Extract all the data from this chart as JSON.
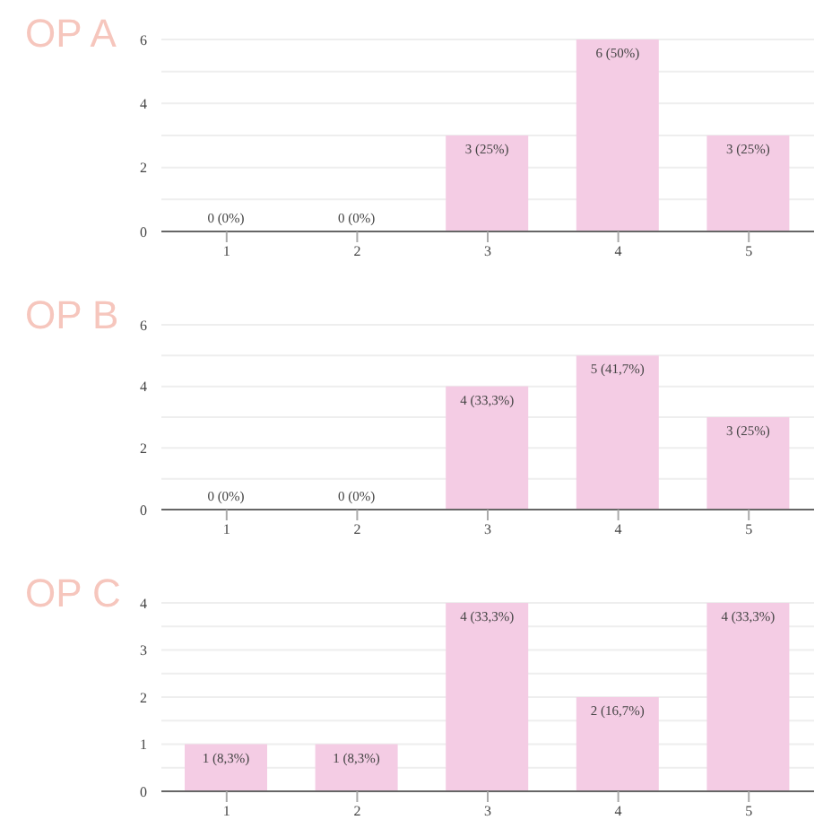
{
  "chart_data": [
    {
      "type": "bar",
      "title": "OP A",
      "categories": [
        "1",
        "2",
        "3",
        "4",
        "5"
      ],
      "values": [
        0,
        0,
        3,
        6,
        3
      ],
      "color": "#f4cce4",
      "value_labels": [
        "0 (0%)",
        "0 (0%)",
        "3 (25%)",
        "6 (50%)",
        "3 (25%)"
      ],
      "ylim": [
        0,
        6
      ],
      "yticks": [
        0,
        {
          "value": 1,
          "label": null
        },
        2,
        {
          "value": 3,
          "label": null
        },
        4,
        {
          "value": 5,
          "label": null
        },
        6
      ],
      "grid": "y"
    },
    {
      "type": "bar",
      "title": "OP B",
      "categories": [
        "1",
        "2",
        "3",
        "4",
        "5"
      ],
      "values": [
        0,
        0,
        4,
        5,
        3
      ],
      "color": "#f4cce4",
      "value_labels": [
        "0 (0%)",
        "0 (0%)",
        "4 (33,3%)",
        "5 (41,7%)",
        "3 (25%)"
      ],
      "ylim": [
        0,
        6
      ],
      "yticks": [
        0,
        {
          "value": 1,
          "label": null
        },
        2,
        {
          "value": 3,
          "label": null
        },
        4,
        {
          "value": 5,
          "label": null
        },
        6
      ],
      "grid": "y"
    },
    {
      "type": "bar",
      "title": "OP C",
      "categories": [
        "1",
        "2",
        "3",
        "4",
        "5"
      ],
      "values": [
        1,
        1,
        4,
        2,
        4
      ],
      "color": "#f4cce4",
      "value_labels": [
        "1 (8,3%)",
        "1 (8,3%)",
        "4 (33,3%)",
        "2 (16,7%)",
        "4 (33,3%)"
      ],
      "ylim": [
        0,
        4
      ],
      "yticks": [
        0,
        {
          "value": 0.5,
          "label": null
        },
        1,
        {
          "value": 1.5,
          "label": null
        },
        2,
        {
          "value": 2.5,
          "label": null
        },
        3,
        {
          "value": 3.5,
          "label": null
        },
        4
      ],
      "grid": "y"
    }
  ]
}
